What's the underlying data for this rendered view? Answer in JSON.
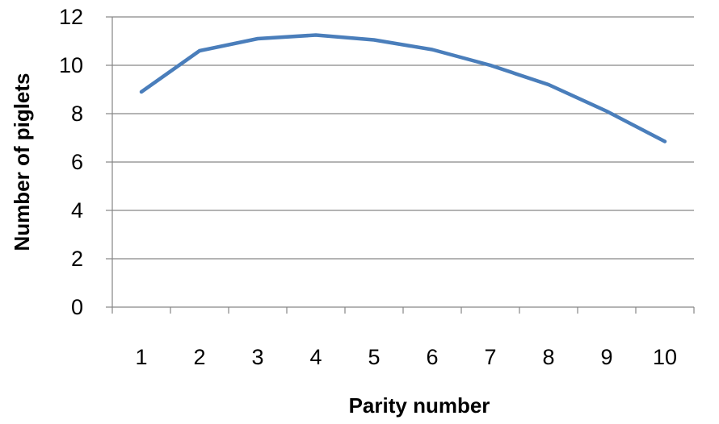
{
  "chart_data": {
    "type": "line",
    "title": "",
    "xlabel": "Parity number",
    "ylabel": "Number of piglets",
    "x": [
      "1",
      "2",
      "3",
      "4",
      "5",
      "6",
      "7",
      "8",
      "9",
      "10"
    ],
    "series": [
      {
        "values": [
          8.9,
          10.6,
          11.1,
          11.25,
          11.05,
          10.65,
          10.0,
          9.2,
          8.1,
          6.85
        ]
      }
    ],
    "ylim": [
      0,
      12
    ],
    "yticks": [
      "0",
      "2",
      "4",
      "6",
      "8",
      "10",
      "12"
    ],
    "grid": true,
    "legend": "none",
    "colors": {
      "line": "#4A7EBB",
      "grid": "#868686",
      "axis": "#868686"
    }
  }
}
